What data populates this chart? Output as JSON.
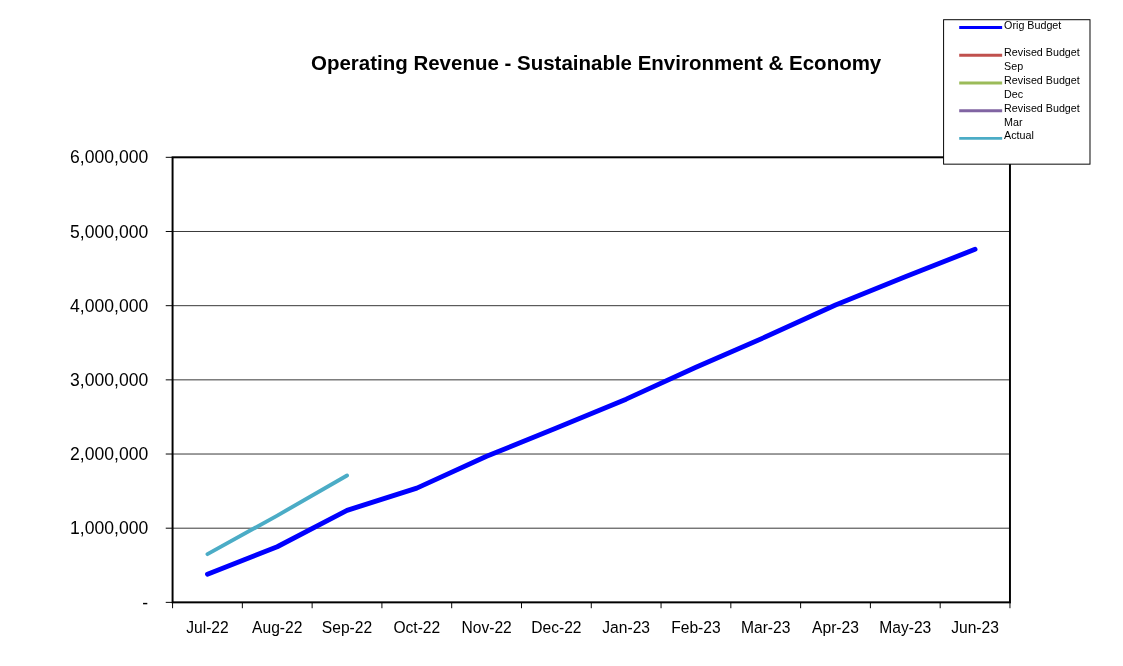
{
  "chart_data": {
    "type": "line",
    "title": "Operating Revenue - Sustainable Environment & Economy",
    "categories": [
      "Jul-22",
      "Aug-22",
      "Sep-22",
      "Oct-22",
      "Nov-22",
      "Dec-22",
      "Jan-23",
      "Feb-23",
      "Mar-23",
      "Apr-23",
      "May-23",
      "Jun-23"
    ],
    "series": [
      {
        "name": "Orig Budget",
        "color": "#0000ff",
        "values": [
          380000,
          750000,
          1240000,
          1540000,
          1970000,
          2350000,
          2740000,
          3170000,
          3580000,
          4010000,
          4390000,
          4760000
        ]
      },
      {
        "name": "Revised Budget Sep",
        "color": "#c0504d",
        "values": [
          null,
          null,
          null,
          null,
          null,
          null,
          null,
          null,
          null,
          null,
          null,
          null
        ]
      },
      {
        "name": "Revised Budget Dec",
        "color": "#9bbb59",
        "values": [
          null,
          null,
          null,
          null,
          null,
          null,
          null,
          null,
          null,
          null,
          null,
          null
        ]
      },
      {
        "name": "Revised Budget Mar",
        "color": "#8064a2",
        "values": [
          null,
          null,
          null,
          null,
          null,
          null,
          null,
          null,
          null,
          null,
          null,
          null
        ]
      },
      {
        "name": "Actual",
        "color": "#4bacc6",
        "values": [
          650000,
          1170000,
          1710000,
          null,
          null,
          null,
          null,
          null,
          null,
          null,
          null,
          null
        ]
      }
    ],
    "ylim": [
      0,
      6000000
    ],
    "yticks": [
      {
        "value": 0,
        "label": "-"
      },
      {
        "value": 1000000,
        "label": "1,000,000"
      },
      {
        "value": 2000000,
        "label": "2,000,000"
      },
      {
        "value": 3000000,
        "label": "3,000,000"
      },
      {
        "value": 4000000,
        "label": "4,000,000"
      },
      {
        "value": 5000000,
        "label": "5,000,000"
      },
      {
        "value": 6000000,
        "label": "6,000,000"
      }
    ],
    "grid": "y",
    "legend": "top right",
    "marker": "none",
    "line_style": "solid"
  }
}
